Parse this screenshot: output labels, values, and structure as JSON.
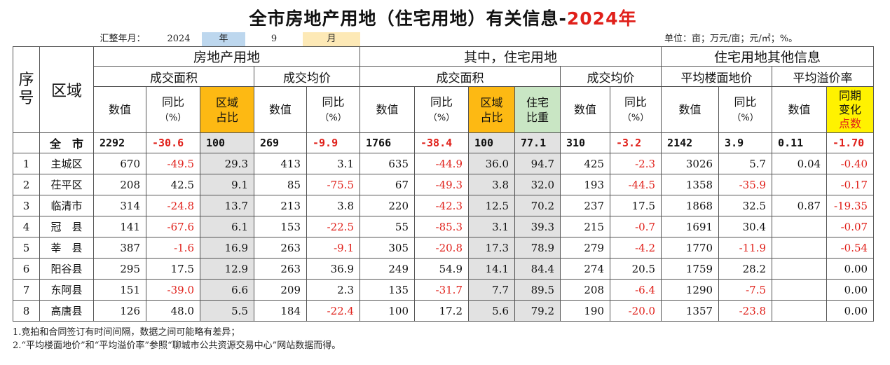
{
  "title": {
    "main": "全市房地产用地（住宅用地）有关信息-",
    "year": "2024年"
  },
  "meta": {
    "period_label": "汇整年月：",
    "year_value": "2024",
    "year_unit": "年",
    "month_value": "9",
    "month_unit": "月",
    "units": "单位：亩；万元/亩；元/㎡；%。"
  },
  "colors": {
    "negative": "#e0201a",
    "highlight_orange": "#fdb913",
    "highlight_green": "#c9e6c4",
    "highlight_yellow": "#fff200",
    "shade_gray": "#e2e2e2"
  },
  "headers": {
    "seq": "序号",
    "district": "区域",
    "group_real_estate": "房地产用地",
    "group_residential": "其中，住宅用地",
    "group_other": "住宅用地其他信息",
    "deal_area": "成交面积",
    "deal_price": "成交均价",
    "res_deal_area": "成交面积",
    "res_deal_price": "成交均价",
    "avg_floor_price": "平均楼面地价",
    "avg_premium": "平均溢价率",
    "value": "数值",
    "yoy": "同比",
    "yoy_unit": "（%）",
    "share_line1": "区域",
    "share_line2": "占比",
    "weight_line1": "住宅",
    "weight_line2": "比重",
    "change_line1": "同期",
    "change_line2": "变化",
    "change_line3": "点数"
  },
  "total": {
    "name": "全　市",
    "area": "2292",
    "area_yoy": "-30.6",
    "area_share": "100",
    "price": "269",
    "price_yoy": "-9.9",
    "res_area": "1766",
    "res_area_yoy": "-38.4",
    "res_share": "100",
    "res_weight": "77.1",
    "res_price": "310",
    "res_price_yoy": "-3.2",
    "floor_price": "2142",
    "floor_yoy": "3.9",
    "premium": "0.11",
    "premium_change": "-1.70"
  },
  "rows": [
    {
      "seq": "1",
      "name": "主城区",
      "area": "670",
      "area_yoy": "-49.5",
      "area_share": "29.3",
      "price": "413",
      "price_yoy": "3.1",
      "res_area": "635",
      "res_area_yoy": "-44.9",
      "res_share": "36.0",
      "res_weight": "94.7",
      "res_price": "425",
      "res_price_yoy": "-2.3",
      "floor_price": "3026",
      "floor_yoy": "5.7",
      "premium": "0.04",
      "premium_change": "-0.40"
    },
    {
      "seq": "2",
      "name": "茌平区",
      "area": "208",
      "area_yoy": "42.5",
      "area_share": "9.1",
      "price": "85",
      "price_yoy": "-75.5",
      "res_area": "67",
      "res_area_yoy": "-49.3",
      "res_share": "3.8",
      "res_weight": "32.0",
      "res_price": "193",
      "res_price_yoy": "-44.5",
      "floor_price": "1358",
      "floor_yoy": "-35.9",
      "premium": "",
      "premium_change": "-0.17"
    },
    {
      "seq": "3",
      "name": "临清市",
      "area": "314",
      "area_yoy": "-24.8",
      "area_share": "13.7",
      "price": "213",
      "price_yoy": "3.8",
      "res_area": "220",
      "res_area_yoy": "-42.3",
      "res_share": "12.5",
      "res_weight": "70.2",
      "res_price": "237",
      "res_price_yoy": "17.5",
      "floor_price": "1868",
      "floor_yoy": "32.5",
      "premium": "0.87",
      "premium_change": "-19.35"
    },
    {
      "seq": "4",
      "name": "冠　县",
      "area": "141",
      "area_yoy": "-67.6",
      "area_share": "6.1",
      "price": "153",
      "price_yoy": "-22.5",
      "res_area": "55",
      "res_area_yoy": "-85.3",
      "res_share": "3.1",
      "res_weight": "39.3",
      "res_price": "215",
      "res_price_yoy": "-0.7",
      "floor_price": "1691",
      "floor_yoy": "30.4",
      "premium": "",
      "premium_change": "-0.07"
    },
    {
      "seq": "5",
      "name": "莘　县",
      "area": "387",
      "area_yoy": "-1.6",
      "area_share": "16.9",
      "price": "263",
      "price_yoy": "-9.1",
      "res_area": "305",
      "res_area_yoy": "-20.8",
      "res_share": "17.3",
      "res_weight": "78.9",
      "res_price": "279",
      "res_price_yoy": "-4.2",
      "floor_price": "1770",
      "floor_yoy": "-11.9",
      "premium": "",
      "premium_change": "-0.54"
    },
    {
      "seq": "6",
      "name": "阳谷县",
      "area": "295",
      "area_yoy": "17.5",
      "area_share": "12.9",
      "price": "263",
      "price_yoy": "36.9",
      "res_area": "249",
      "res_area_yoy": "54.9",
      "res_share": "14.1",
      "res_weight": "84.4",
      "res_price": "274",
      "res_price_yoy": "20.5",
      "floor_price": "1759",
      "floor_yoy": "28.2",
      "premium": "",
      "premium_change": "0.00"
    },
    {
      "seq": "7",
      "name": "东阿县",
      "area": "151",
      "area_yoy": "-39.0",
      "area_share": "6.6",
      "price": "209",
      "price_yoy": "2.3",
      "res_area": "135",
      "res_area_yoy": "-31.7",
      "res_share": "7.7",
      "res_weight": "89.5",
      "res_price": "208",
      "res_price_yoy": "-6.4",
      "floor_price": "1290",
      "floor_yoy": "-7.5",
      "premium": "",
      "premium_change": "0.00"
    },
    {
      "seq": "8",
      "name": "高唐县",
      "area": "126",
      "area_yoy": "48.0",
      "area_share": "5.5",
      "price": "184",
      "price_yoy": "-22.4",
      "res_area": "100",
      "res_area_yoy": "17.2",
      "res_share": "5.6",
      "res_weight": "79.2",
      "res_price": "190",
      "res_price_yoy": "-20.0",
      "floor_price": "1357",
      "floor_yoy": "-23.8",
      "premium": "",
      "premium_change": "0.00"
    }
  ],
  "notes": [
    "1.竞拍和合同签订有时间间隔，数据之间可能略有差异；",
    "2.“平均楼面地价”和“平均溢价率”参照“聊城市公共资源交易中心”网站数据而得。"
  ]
}
